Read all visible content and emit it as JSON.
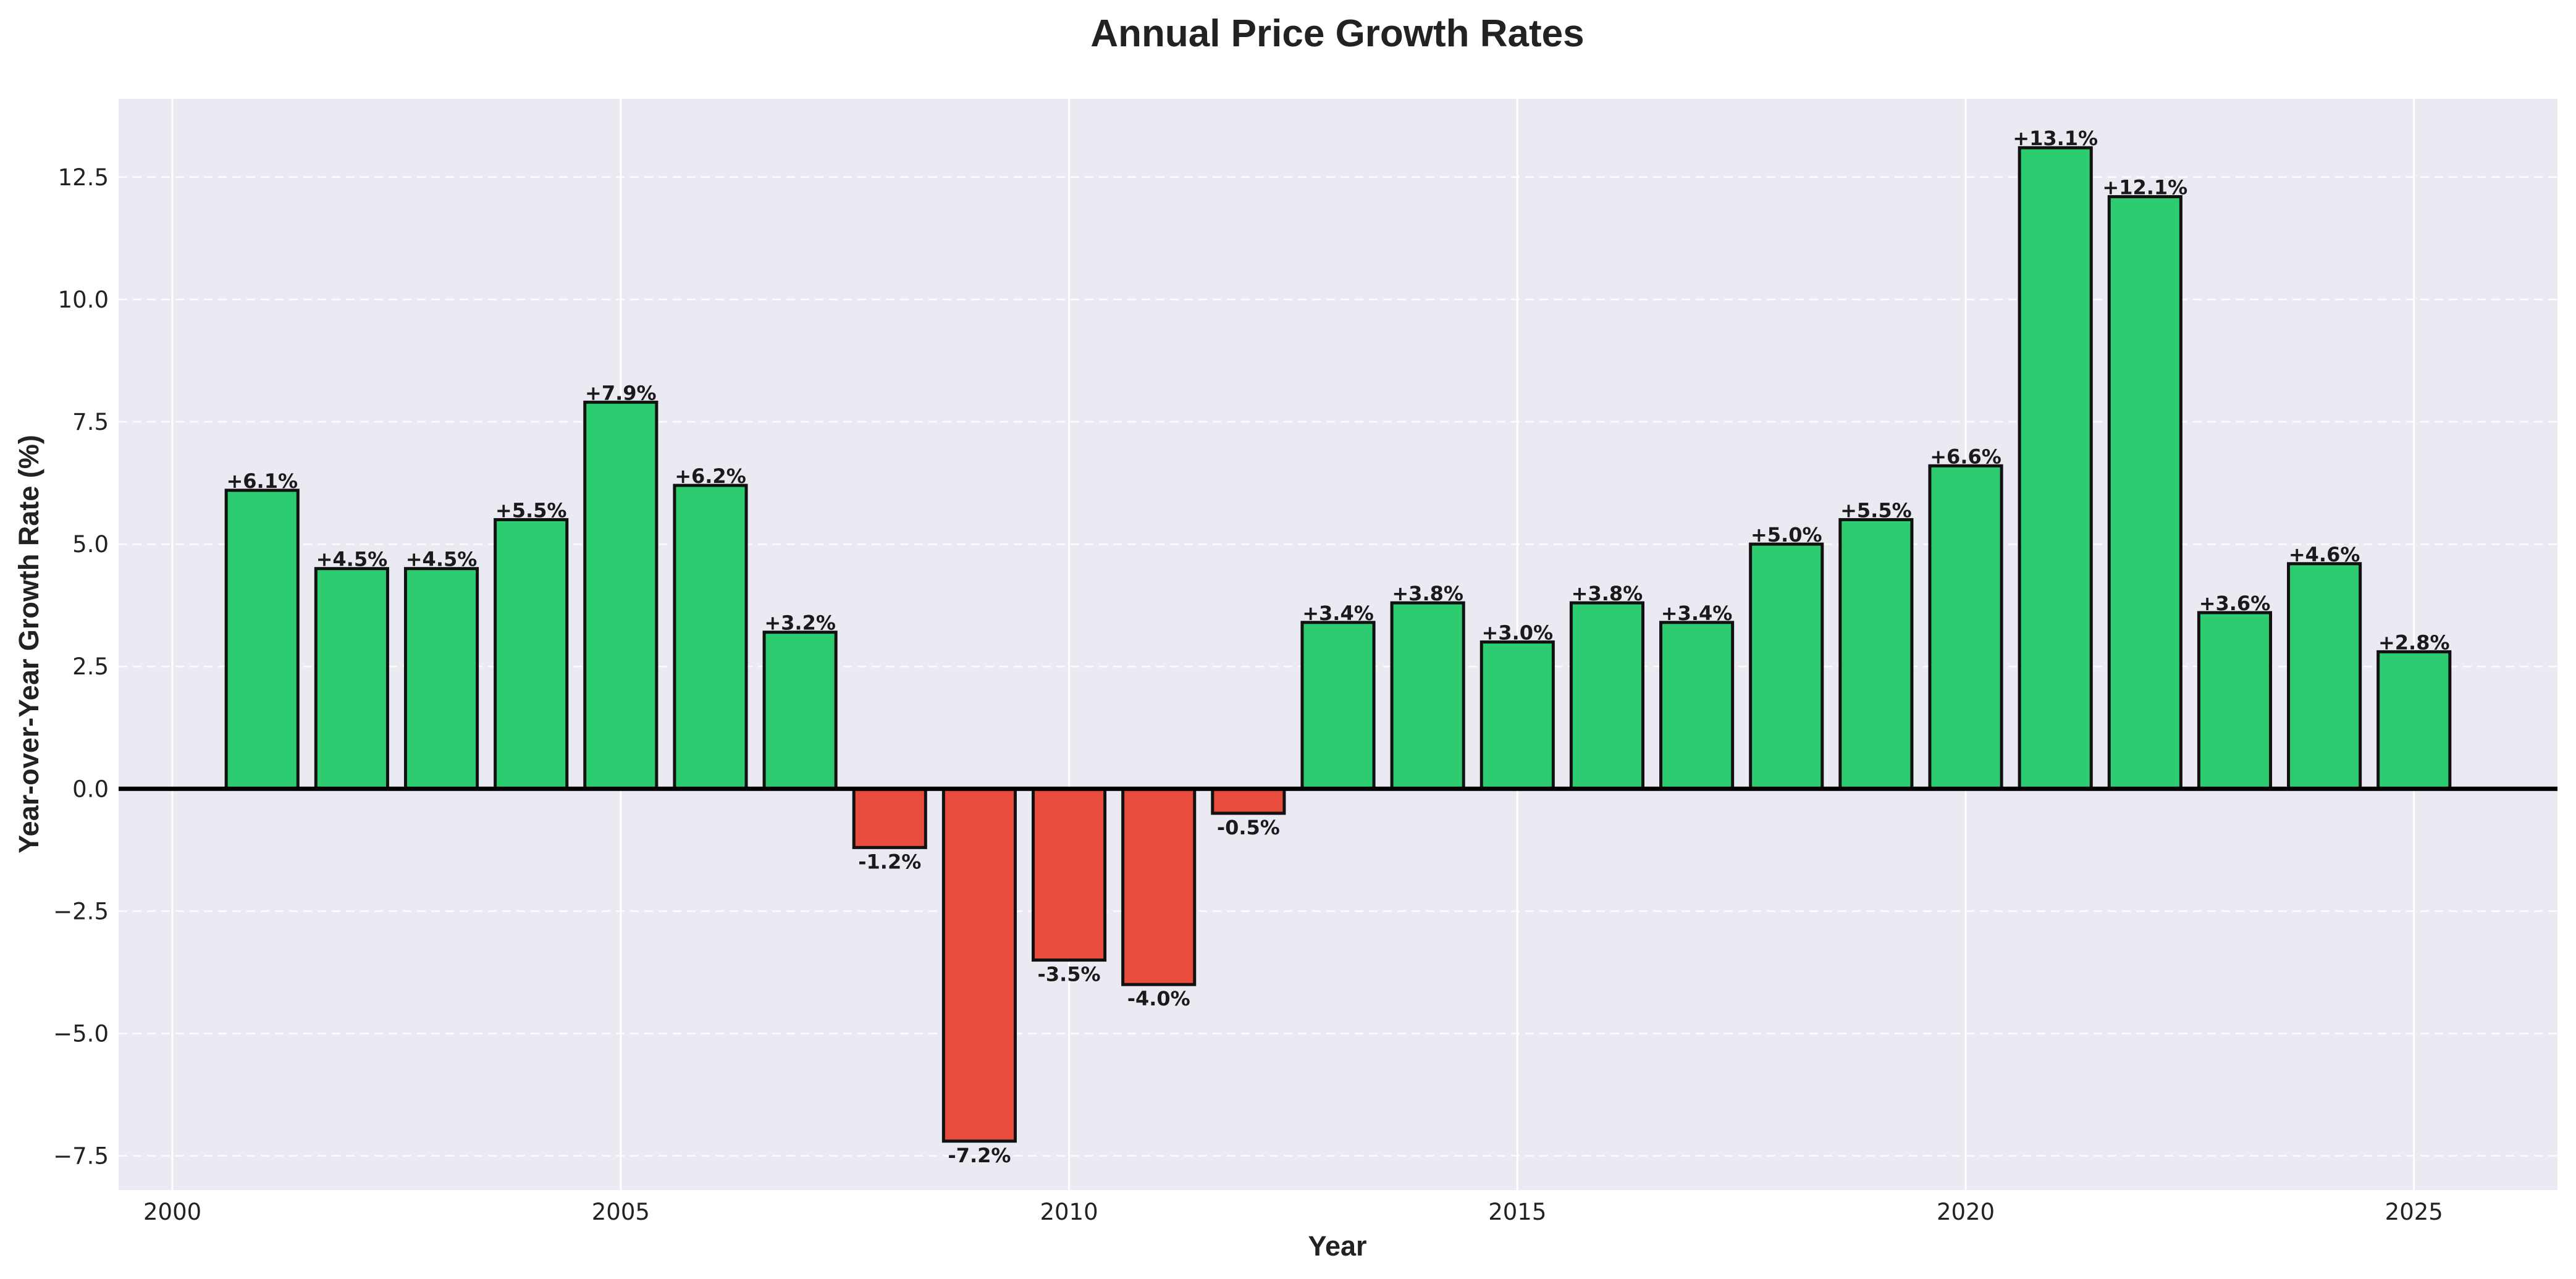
{
  "chart_data": {
    "type": "bar",
    "title": "Annual Price Growth Rates",
    "xlabel": "Year",
    "ylabel": "Year-over-Year Growth Rate (%)",
    "x": [
      2001,
      2002,
      2003,
      2004,
      2005,
      2006,
      2007,
      2008,
      2009,
      2010,
      2011,
      2012,
      2013,
      2014,
      2015,
      2016,
      2017,
      2018,
      2019,
      2020,
      2021,
      2022,
      2023,
      2024,
      2025
    ],
    "values": [
      6.1,
      4.5,
      4.5,
      5.5,
      7.9,
      6.2,
      3.2,
      -1.2,
      -7.2,
      -3.5,
      -4.0,
      -0.5,
      3.4,
      3.8,
      3.0,
      3.8,
      3.4,
      5.0,
      5.5,
      6.6,
      13.1,
      12.1,
      3.6,
      4.6,
      2.8
    ],
    "data_labels": [
      "+6.1%",
      "+4.5%",
      "+4.5%",
      "+5.5%",
      "+7.9%",
      "+6.2%",
      "+3.2%",
      "-1.2%",
      "-7.2%",
      "-3.5%",
      "-4.0%",
      "-0.5%",
      "+3.4%",
      "+3.8%",
      "+3.0%",
      "+3.8%",
      "+3.4%",
      "+5.0%",
      "+5.5%",
      "+6.6%",
      "+13.1%",
      "+12.1%",
      "+3.6%",
      "+4.6%",
      "+2.8%"
    ],
    "xlim": [
      1999.4,
      2026.6
    ],
    "ylim": [
      -8.2,
      14.1
    ],
    "xticks": [
      2000,
      2005,
      2010,
      2015,
      2020,
      2025
    ],
    "xtick_labels": [
      "2000",
      "2005",
      "2010",
      "2015",
      "2020",
      "2025"
    ],
    "yticks": [
      -7.5,
      -5.0,
      -2.5,
      0.0,
      2.5,
      5.0,
      7.5,
      10.0,
      12.5
    ],
    "ytick_labels": [
      "−7.5",
      "−5.0",
      "−2.5",
      "0.0",
      "2.5",
      "5.0",
      "7.5",
      "10.0",
      "12.5"
    ],
    "grid": true,
    "colors": {
      "positive": "#2ecc71",
      "negative": "#e74c3c",
      "bar_edge": "#111111",
      "plot_background": "#eaeaf2",
      "grid": "#ffffff",
      "zero_line": "#000000"
    }
  }
}
